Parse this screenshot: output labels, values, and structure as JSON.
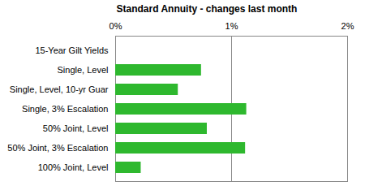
{
  "chart_data": {
    "type": "bar",
    "title": "Standard Annuity - changes last month",
    "orientation": "horizontal",
    "categories": [
      "15-Year Gilt Yields",
      "Single, Level",
      "Single, Level, 10-yr Guar",
      "Single, 3% Escalation",
      "50% Joint, Level",
      "50% Joint, 3% Escalation",
      "100% Joint, Level"
    ],
    "values": [
      0,
      0.74,
      0.54,
      1.13,
      0.79,
      1.12,
      0.22
    ],
    "color": "#2eb82e",
    "xlim": [
      0,
      2
    ],
    "xticks": [
      {
        "value": 0,
        "label": "0%"
      },
      {
        "value": 1,
        "label": "1%"
      },
      {
        "value": 2,
        "label": "2%"
      }
    ],
    "grid": true
  }
}
